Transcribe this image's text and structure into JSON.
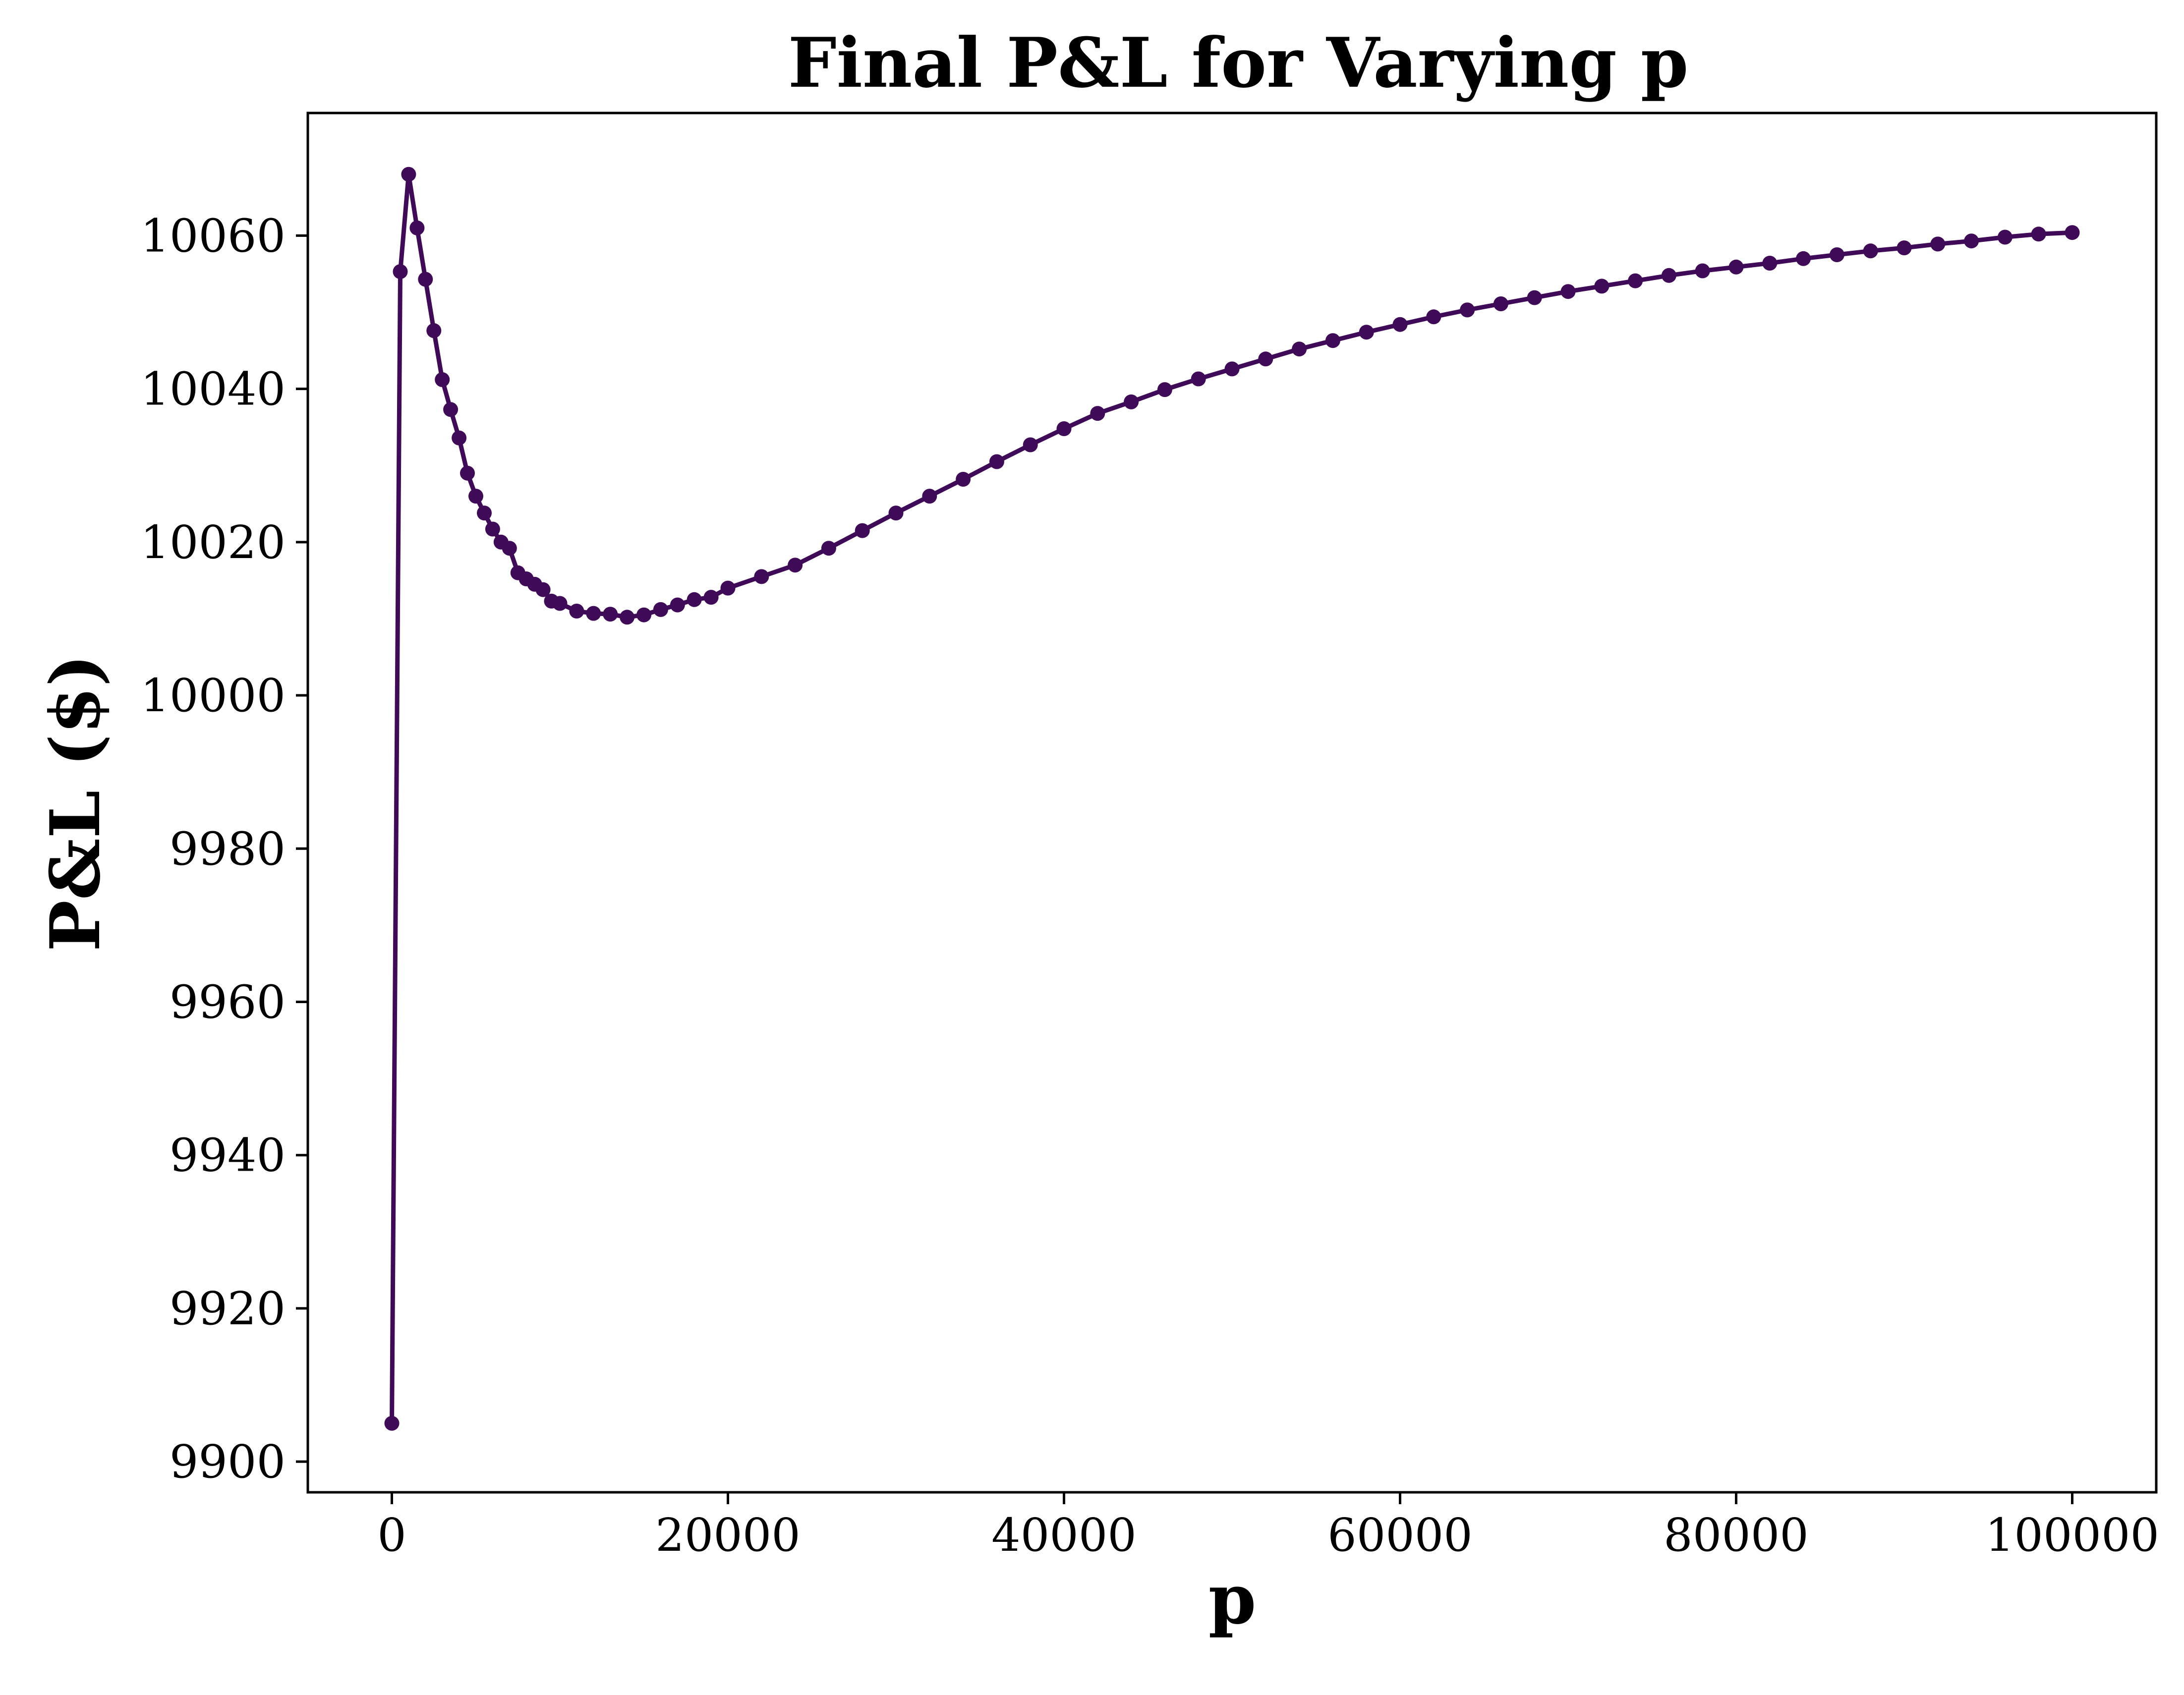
{
  "chart_data": {
    "type": "line",
    "title": "Final P&L for Varying p",
    "xlabel": "p",
    "ylabel": "P&L ($)",
    "xlim": [
      -5000,
      105000
    ],
    "ylim": [
      9896,
      10076
    ],
    "xticks": [
      0,
      20000,
      40000,
      60000,
      80000,
      100000
    ],
    "yticks": [
      9900,
      9920,
      9940,
      9960,
      9980,
      10000,
      10020,
      10040,
      10060
    ],
    "grid": false,
    "legend": "none",
    "marker": "circle",
    "color": "#3f0a57",
    "series": [
      {
        "x": [
          0,
          500,
          1000,
          1500,
          2000,
          2500,
          3000,
          3500,
          4000,
          4500,
          5000,
          5500,
          6000,
          6500,
          7000,
          7500,
          8000,
          8500,
          9000,
          9500,
          10000,
          11000,
          12000,
          13000,
          14000,
          15000,
          16000,
          17000,
          18000,
          19000,
          20000,
          22000,
          24000,
          26000,
          28000,
          30000,
          32000,
          34000,
          36000,
          38000,
          40000,
          42000,
          44000,
          46000,
          48000,
          50000,
          52000,
          54000,
          56000,
          58000,
          60000,
          62000,
          64000,
          66000,
          68000,
          70000,
          72000,
          74000,
          76000,
          78000,
          80000,
          82000,
          84000,
          86000,
          88000,
          90000,
          92000,
          94000,
          96000,
          98000,
          100000
        ],
        "y": [
          9905,
          10055.3,
          10068,
          10061,
          10054.3,
          10047.6,
          10041.2,
          10037.3,
          10033.6,
          10029,
          10026,
          10023.8,
          10021.7,
          10020,
          10019.2,
          10016,
          10015.2,
          10014.5,
          10013.8,
          10012.3,
          10012,
          10011,
          10010.7,
          10010.6,
          10010.2,
          10010.5,
          10011.2,
          10011.8,
          10012.5,
          10012.8,
          10014,
          10015.5,
          10017,
          10019.2,
          10021.5,
          10023.8,
          10026,
          10028.2,
          10030.5,
          10032.7,
          10034.8,
          10036.8,
          10038.3,
          10039.9,
          10041.3,
          10042.6,
          10043.9,
          10045.2,
          10046.3,
          10047.4,
          10048.4,
          10049.4,
          10050.3,
          10051.1,
          10051.9,
          10052.7,
          10053.4,
          10054.1,
          10054.8,
          10055.4,
          10055.9,
          10056.4,
          10057,
          10057.5,
          10058,
          10058.4,
          10058.9,
          10059.3,
          10059.8,
          10060.2,
          10060.4
        ]
      }
    ]
  }
}
